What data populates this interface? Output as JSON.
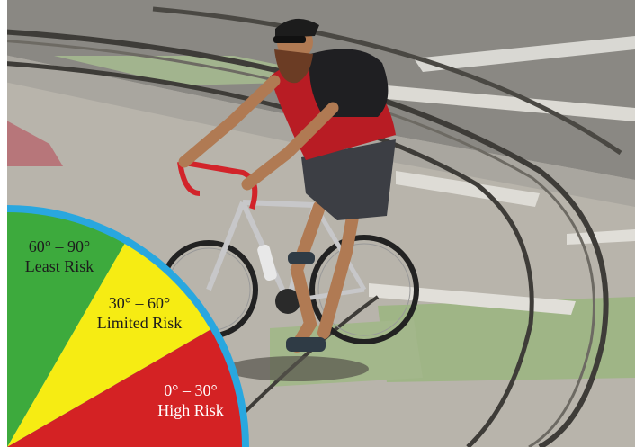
{
  "risk_legend": {
    "sectors": [
      {
        "range": "60° – 90°",
        "label": "Least Risk",
        "color": "#3daa3d"
      },
      {
        "range": "30° – 60°",
        "label": "Limited Risk",
        "color": "#f6ec13"
      },
      {
        "range": "0° – 30°",
        "label": "High Risk",
        "color": "#d42224"
      }
    ],
    "border_color": "#29a7df"
  }
}
